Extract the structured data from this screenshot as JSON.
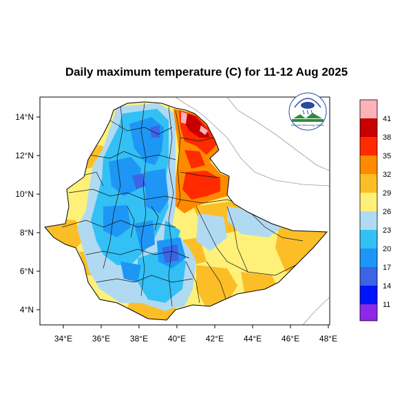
{
  "title": "Daily maximum temperature (C) for 11-12 Aug 2025",
  "axes": {
    "lon_ticks": [
      "34°E",
      "36°E",
      "38°E",
      "40°E",
      "42°E",
      "44°E",
      "46°E",
      "48°E"
    ],
    "lat_ticks": [
      "14°N",
      "12°N",
      "10°N",
      "8°N",
      "6°N",
      "4°N"
    ]
  },
  "colorbar": {
    "levels": [
      "41",
      "38",
      "35",
      "32",
      "29",
      "26",
      "23",
      "20",
      "17",
      "14",
      "11"
    ],
    "colors": [
      "#fbb2b8",
      "#c80000",
      "#ff2a00",
      "#ff8a00",
      "#fbbe26",
      "#fff07a",
      "#b0daf2",
      "#33c0f5",
      "#1e96f5",
      "#3c64e6",
      "#0014fa",
      "#8c28e6"
    ]
  },
  "logo": {
    "text": "Ethiopian Meteorology Institute"
  },
  "chart_data": {
    "type": "heatmap",
    "title": "Daily maximum temperature (C) for 11-12 Aug 2025",
    "xlabel": "",
    "ylabel": "",
    "xlim": [
      33,
      48
    ],
    "ylim": [
      3,
      15
    ],
    "xticks": [
      "34°E",
      "36°E",
      "38°E",
      "40°E",
      "42°E",
      "44°E",
      "46°E",
      "48°E"
    ],
    "yticks": [
      "14°N",
      "12°N",
      "10°N",
      "8°N",
      "6°N",
      "4°N"
    ],
    "color_levels": [
      11,
      14,
      17,
      20,
      23,
      26,
      29,
      32,
      35,
      38,
      41
    ]
  }
}
